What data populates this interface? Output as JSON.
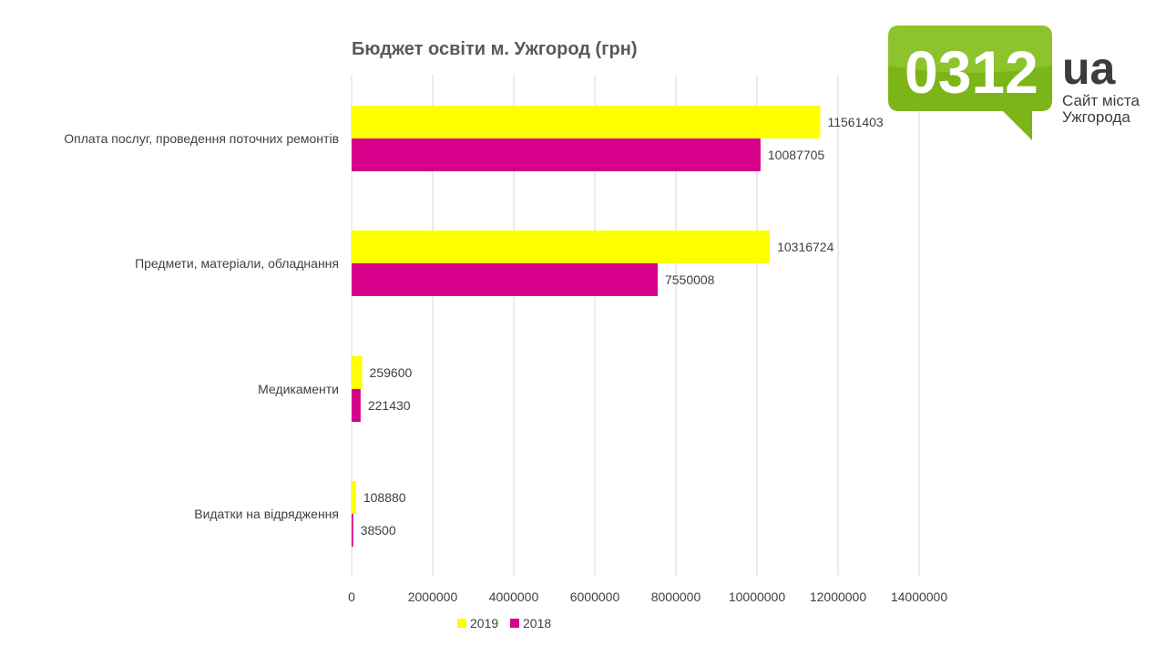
{
  "chart_data": {
    "type": "bar",
    "orientation": "horizontal",
    "title": "Бюджет освіти м. Ужгород (грн)",
    "categories": [
      "Оплата послуг, проведення поточних ремонтів",
      "Предмети, матеріали, обладнання",
      "Медикаменти",
      "Видатки на відрядження"
    ],
    "series": [
      {
        "name": "2019",
        "color": "#ffff00",
        "values": [
          11561403,
          10316724,
          259600,
          108880
        ]
      },
      {
        "name": "2018",
        "color": "#d6008a",
        "values": [
          10087705,
          7550008,
          221430,
          38500
        ]
      }
    ],
    "xlim": [
      0,
      14000000
    ],
    "xticks": [
      0,
      2000000,
      4000000,
      6000000,
      8000000,
      10000000,
      12000000,
      14000000
    ],
    "xlabel": "",
    "ylabel": "",
    "grid": true,
    "legend_position": "bottom"
  },
  "logo": {
    "number": "0312",
    "suffix": "ua",
    "subtitle_line1": "Сайт міста",
    "subtitle_line2": "Ужгорода",
    "color": "#7cb518"
  }
}
